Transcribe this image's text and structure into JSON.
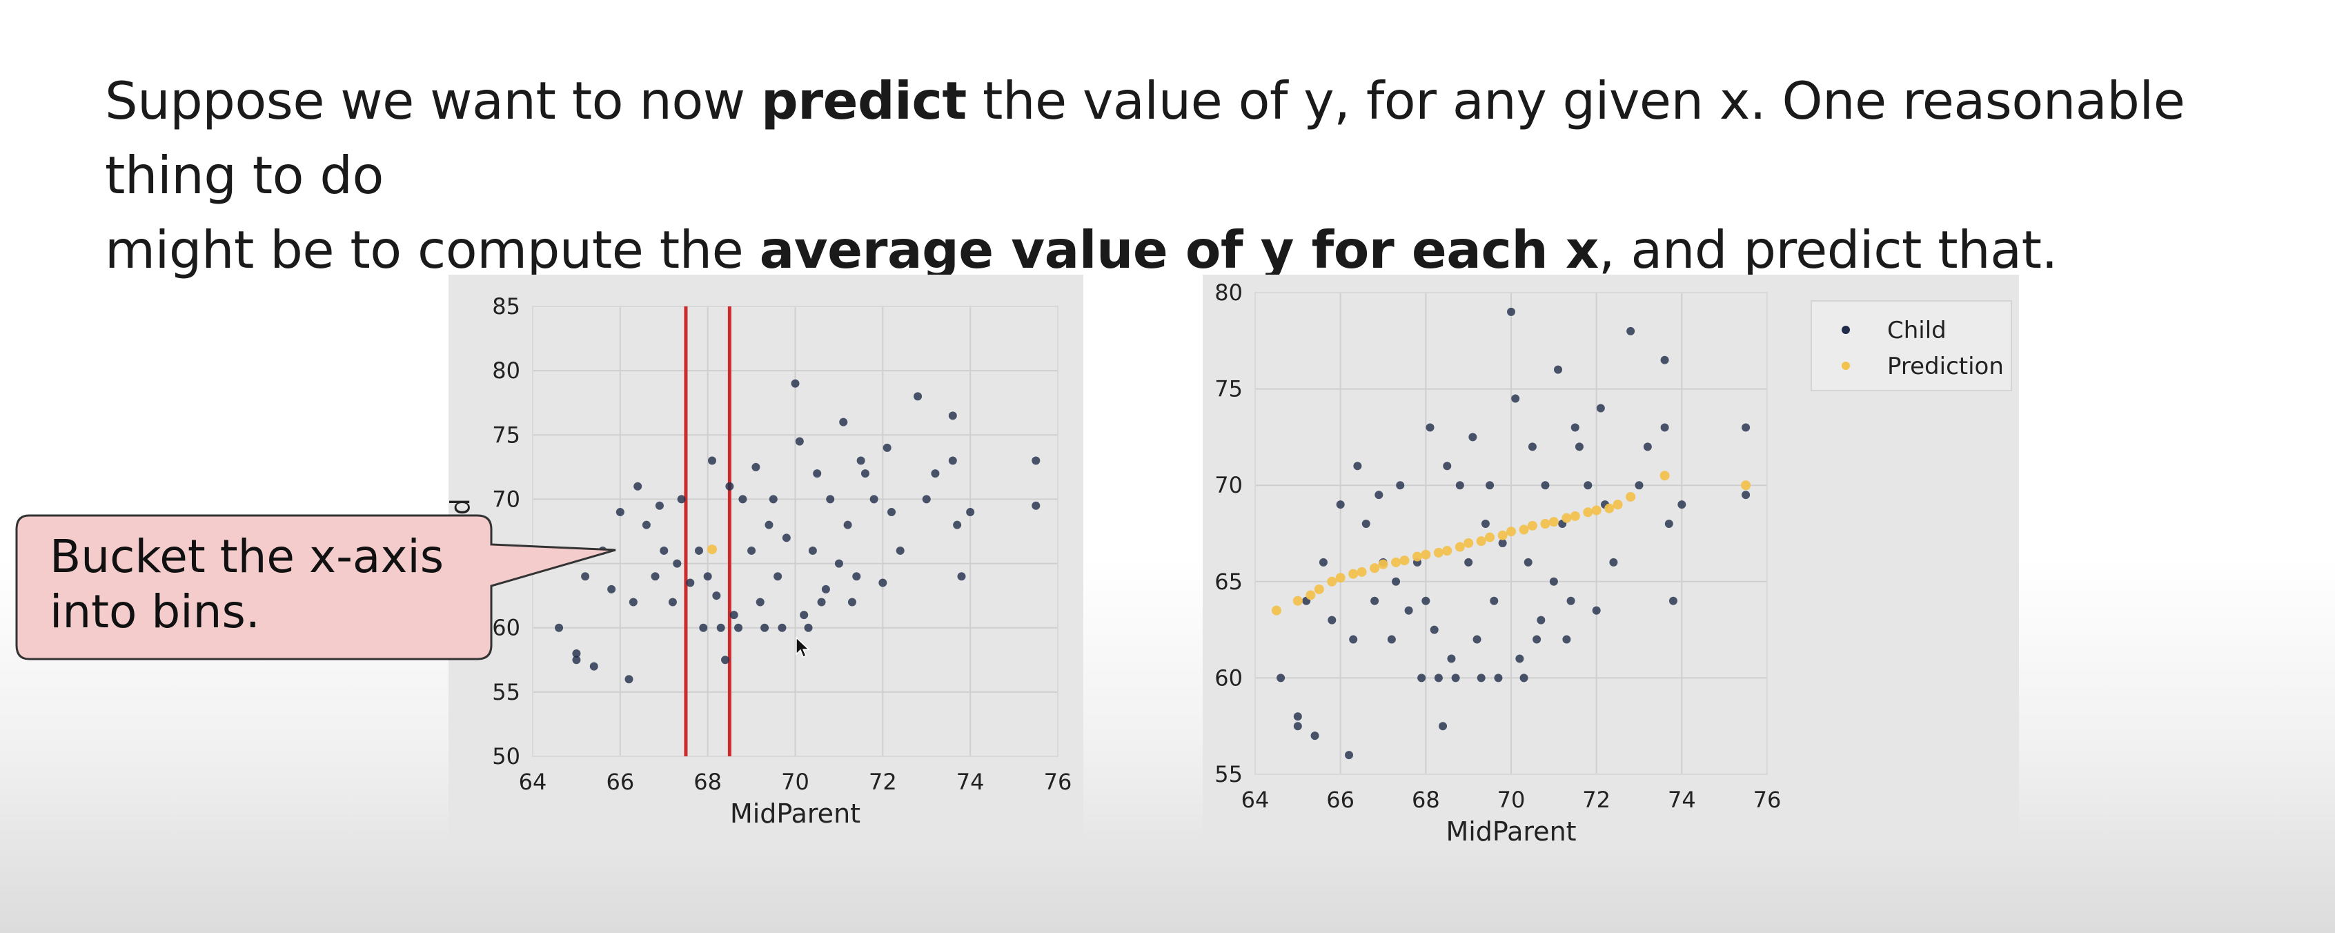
{
  "slide": {
    "line1_a": "Suppose we want to now ",
    "line1_b": "predict",
    "line1_c": " the value of y, for any given x. One reasonable thing to do",
    "line2_a": "might be to compute the ",
    "line2_b": "average value of y for each x",
    "line2_c": ", and predict that."
  },
  "callout": {
    "line1": "Bucket the x-axis",
    "line2": "into bins."
  },
  "colors": {
    "child": "#1f2d4a",
    "prediction": "#f2c14e",
    "bin_line": "#cc2b2b",
    "panel_bg": "#e6e6e6",
    "callout_fill": "#f4cccc"
  },
  "chart_data": [
    {
      "type": "scatter",
      "xlabel": "MidParent",
      "ylabel": "Child",
      "xlim": [
        64,
        76
      ],
      "ylim": [
        50,
        85
      ],
      "x_ticks": [
        "64",
        "66",
        "68",
        "70",
        "72",
        "74",
        "76"
      ],
      "y_ticks": [
        "50",
        "55",
        "60",
        "65",
        "70",
        "75",
        "80",
        "85"
      ],
      "grid": true,
      "bin_lines": [
        67.5,
        68.5
      ],
      "series": [
        {
          "name": "Child",
          "points": [
            [
              64.6,
              60.0
            ],
            [
              65.0,
              58.0
            ],
            [
              65.0,
              57.5
            ],
            [
              65.2,
              64.0
            ],
            [
              65.4,
              57.0
            ],
            [
              65.6,
              66.0
            ],
            [
              65.8,
              63.0
            ],
            [
              66.0,
              69.0
            ],
            [
              66.2,
              56.0
            ],
            [
              66.3,
              62.0
            ],
            [
              66.6,
              68.0
            ],
            [
              66.8,
              64.0
            ],
            [
              67.0,
              66.0
            ],
            [
              67.2,
              62.0
            ],
            [
              67.4,
              70.0
            ],
            [
              67.6,
              63.5
            ],
            [
              67.8,
              66.0
            ],
            [
              68.0,
              64.0
            ],
            [
              68.2,
              62.5
            ],
            [
              68.4,
              57.5
            ],
            [
              68.6,
              61.0
            ],
            [
              68.8,
              70.0
            ],
            [
              69.0,
              66.0
            ],
            [
              69.2,
              62.0
            ],
            [
              69.4,
              68.0
            ],
            [
              69.6,
              64.0
            ],
            [
              69.8,
              67.0
            ],
            [
              70.0,
              79.0
            ],
            [
              70.2,
              61.0
            ],
            [
              70.4,
              66.0
            ],
            [
              70.6,
              62.0
            ],
            [
              70.8,
              70.0
            ],
            [
              71.0,
              65.0
            ],
            [
              71.2,
              68.0
            ],
            [
              71.4,
              64.0
            ],
            [
              71.6,
              72.0
            ],
            [
              71.8,
              70.0
            ],
            [
              72.0,
              63.5
            ],
            [
              72.2,
              69.0
            ],
            [
              72.4,
              66.0
            ],
            [
              72.8,
              78.0
            ],
            [
              73.0,
              70.0
            ],
            [
              73.2,
              72.0
            ],
            [
              73.6,
              76.5
            ],
            [
              73.6,
              73.0
            ],
            [
              73.7,
              68.0
            ],
            [
              73.8,
              64.0
            ],
            [
              74.0,
              69.0
            ],
            [
              75.5,
              73.0
            ],
            [
              75.5,
              69.5
            ],
            [
              68.1,
              73.0
            ],
            [
              68.5,
              71.0
            ],
            [
              69.1,
              72.5
            ],
            [
              69.5,
              70.0
            ],
            [
              70.1,
              74.5
            ],
            [
              70.5,
              72.0
            ],
            [
              71.1,
              76.0
            ],
            [
              71.5,
              73.0
            ],
            [
              72.1,
              74.0
            ],
            [
              66.4,
              71.0
            ],
            [
              66.9,
              69.5
            ],
            [
              67.3,
              65.0
            ],
            [
              67.9,
              60.0
            ],
            [
              68.3,
              60.0
            ],
            [
              68.7,
              60.0
            ],
            [
              69.3,
              60.0
            ],
            [
              69.7,
              60.0
            ],
            [
              70.3,
              60.0
            ],
            [
              70.7,
              63.0
            ],
            [
              71.3,
              62.0
            ]
          ]
        },
        {
          "name": "Prediction",
          "points": [
            [
              68.1,
              66.1
            ]
          ]
        }
      ]
    },
    {
      "type": "scatter",
      "xlabel": "MidParent",
      "ylabel": "",
      "xlim": [
        64,
        76
      ],
      "ylim": [
        55,
        80
      ],
      "x_ticks": [
        "64",
        "66",
        "68",
        "70",
        "72",
        "74",
        "76"
      ],
      "y_ticks": [
        "55",
        "60",
        "65",
        "70",
        "75",
        "80"
      ],
      "grid": true,
      "legend": "upper right outside",
      "series": [
        {
          "name": "Child",
          "points": [
            [
              64.6,
              60.0
            ],
            [
              65.0,
              58.0
            ],
            [
              65.0,
              57.5
            ],
            [
              65.2,
              64.0
            ],
            [
              65.4,
              57.0
            ],
            [
              65.6,
              66.0
            ],
            [
              65.8,
              63.0
            ],
            [
              66.0,
              69.0
            ],
            [
              66.2,
              56.0
            ],
            [
              66.3,
              62.0
            ],
            [
              66.6,
              68.0
            ],
            [
              66.8,
              64.0
            ],
            [
              67.0,
              66.0
            ],
            [
              67.2,
              62.0
            ],
            [
              67.4,
              70.0
            ],
            [
              67.6,
              63.5
            ],
            [
              67.8,
              66.0
            ],
            [
              68.0,
              64.0
            ],
            [
              68.2,
              62.5
            ],
            [
              68.4,
              57.5
            ],
            [
              68.6,
              61.0
            ],
            [
              68.8,
              70.0
            ],
            [
              69.0,
              66.0
            ],
            [
              69.2,
              62.0
            ],
            [
              69.4,
              68.0
            ],
            [
              69.6,
              64.0
            ],
            [
              69.8,
              67.0
            ],
            [
              70.0,
              79.0
            ],
            [
              70.2,
              61.0
            ],
            [
              70.4,
              66.0
            ],
            [
              70.6,
              62.0
            ],
            [
              70.8,
              70.0
            ],
            [
              71.0,
              65.0
            ],
            [
              71.2,
              68.0
            ],
            [
              71.4,
              64.0
            ],
            [
              71.6,
              72.0
            ],
            [
              71.8,
              70.0
            ],
            [
              72.0,
              63.5
            ],
            [
              72.2,
              69.0
            ],
            [
              72.4,
              66.0
            ],
            [
              72.8,
              78.0
            ],
            [
              73.0,
              70.0
            ],
            [
              73.2,
              72.0
            ],
            [
              73.6,
              76.5
            ],
            [
              73.6,
              73.0
            ],
            [
              73.7,
              68.0
            ],
            [
              73.8,
              64.0
            ],
            [
              74.0,
              69.0
            ],
            [
              75.5,
              73.0
            ],
            [
              75.5,
              69.5
            ],
            [
              68.1,
              73.0
            ],
            [
              68.5,
              71.0
            ],
            [
              69.1,
              72.5
            ],
            [
              69.5,
              70.0
            ],
            [
              70.1,
              74.5
            ],
            [
              70.5,
              72.0
            ],
            [
              71.1,
              76.0
            ],
            [
              71.5,
              73.0
            ],
            [
              72.1,
              74.0
            ],
            [
              66.4,
              71.0
            ],
            [
              66.9,
              69.5
            ],
            [
              67.3,
              65.0
            ],
            [
              67.9,
              60.0
            ],
            [
              68.3,
              60.0
            ],
            [
              68.7,
              60.0
            ],
            [
              69.3,
              60.0
            ],
            [
              69.7,
              60.0
            ],
            [
              70.3,
              60.0
            ],
            [
              70.7,
              63.0
            ],
            [
              71.3,
              62.0
            ]
          ]
        },
        {
          "name": "Prediction",
          "points": [
            [
              64.5,
              63.5
            ],
            [
              65.0,
              64.0
            ],
            [
              65.3,
              64.3
            ],
            [
              65.5,
              64.6
            ],
            [
              65.8,
              65.0
            ],
            [
              66.0,
              65.2
            ],
            [
              66.3,
              65.4
            ],
            [
              66.5,
              65.5
            ],
            [
              66.8,
              65.7
            ],
            [
              67.0,
              65.9
            ],
            [
              67.3,
              66.0
            ],
            [
              67.5,
              66.1
            ],
            [
              67.8,
              66.3
            ],
            [
              68.0,
              66.4
            ],
            [
              68.3,
              66.5
            ],
            [
              68.5,
              66.6
            ],
            [
              68.8,
              66.8
            ],
            [
              69.0,
              67.0
            ],
            [
              69.3,
              67.1
            ],
            [
              69.5,
              67.3
            ],
            [
              69.8,
              67.4
            ],
            [
              70.0,
              67.6
            ],
            [
              70.3,
              67.7
            ],
            [
              70.5,
              67.9
            ],
            [
              70.8,
              68.0
            ],
            [
              71.0,
              68.1
            ],
            [
              71.3,
              68.3
            ],
            [
              71.5,
              68.4
            ],
            [
              71.8,
              68.6
            ],
            [
              72.0,
              68.7
            ],
            [
              72.3,
              68.8
            ],
            [
              72.5,
              69.0
            ],
            [
              72.8,
              69.4
            ],
            [
              73.6,
              70.5
            ],
            [
              75.5,
              70.0
            ]
          ]
        }
      ]
    }
  ]
}
